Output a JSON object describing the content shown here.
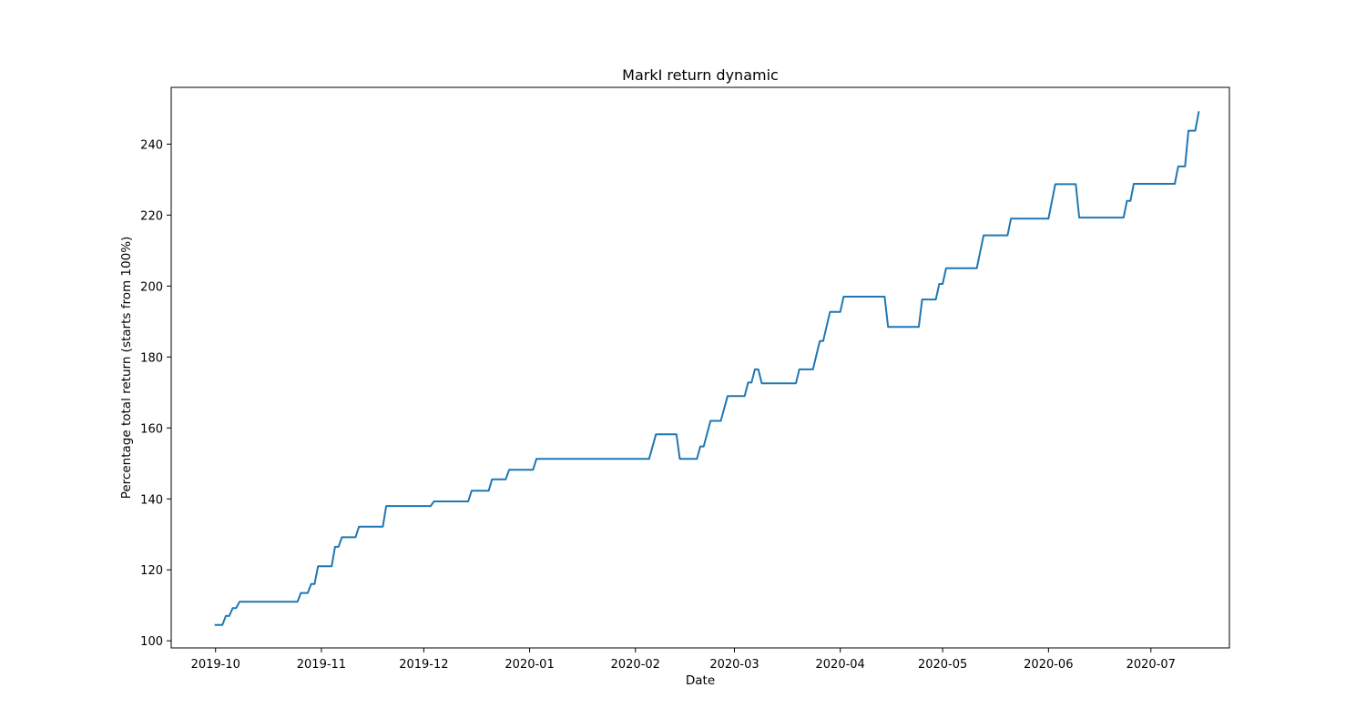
{
  "chart_data": {
    "type": "line",
    "title": "MarkI return dynamic",
    "xlabel": "Date",
    "ylabel": "Percentage total return (starts from 100%)",
    "xlim": [
      "2019-09-18",
      "2020-07-24"
    ],
    "ylim": [
      98,
      256
    ],
    "xticks": [
      "2019-10-01",
      "2019-11-01",
      "2019-12-01",
      "2020-01-01",
      "2020-02-01",
      "2020-03-01",
      "2020-04-01",
      "2020-05-01",
      "2020-06-01",
      "2020-07-01"
    ],
    "xtick_labels": [
      "2019-10",
      "2019-11",
      "2019-12",
      "2020-01",
      "2020-02",
      "2020-03",
      "2020-04",
      "2020-05",
      "2020-06",
      "2020-07"
    ],
    "yticks": [
      100,
      120,
      140,
      160,
      180,
      200,
      220,
      240
    ],
    "ytick_labels": [
      "100",
      "120",
      "140",
      "160",
      "180",
      "200",
      "220",
      "240"
    ],
    "grid": false,
    "series": [
      {
        "color": "#1f77b4",
        "x": [
          "2019-10-01",
          "2019-10-03",
          "2019-10-04",
          "2019-10-05",
          "2019-10-06",
          "2019-10-07",
          "2019-10-08",
          "2019-10-09",
          "2019-10-10",
          "2019-10-25",
          "2019-10-26",
          "2019-10-28",
          "2019-10-29",
          "2019-10-30",
          "2019-10-31",
          "2019-11-01",
          "2019-11-04",
          "2019-11-05",
          "2019-11-06",
          "2019-11-07",
          "2019-11-11",
          "2019-11-12",
          "2019-11-19",
          "2019-11-20",
          "2019-12-03",
          "2019-12-04",
          "2019-12-14",
          "2019-12-15",
          "2019-12-20",
          "2019-12-21",
          "2019-12-25",
          "2019-12-26",
          "2020-01-02",
          "2020-01-03",
          "2020-02-05",
          "2020-02-07",
          "2020-02-13",
          "2020-02-14",
          "2020-02-19",
          "2020-02-20",
          "2020-02-21",
          "2020-02-23",
          "2020-02-26",
          "2020-02-28",
          "2020-03-04",
          "2020-03-05",
          "2020-03-06",
          "2020-03-07",
          "2020-03-08",
          "2020-03-09",
          "2020-03-19",
          "2020-03-20",
          "2020-03-24",
          "2020-03-26",
          "2020-03-27",
          "2020-03-29",
          "2020-04-01",
          "2020-04-02",
          "2020-04-14",
          "2020-04-15",
          "2020-04-24",
          "2020-04-25",
          "2020-04-29",
          "2020-04-30",
          "2020-05-01",
          "2020-05-02",
          "2020-05-11",
          "2020-05-13",
          "2020-05-20",
          "2020-05-21",
          "2020-06-01",
          "2020-06-03",
          "2020-06-09",
          "2020-06-10",
          "2020-06-23",
          "2020-06-24",
          "2020-06-25",
          "2020-06-26",
          "2020-07-08",
          "2020-07-09",
          "2020-07-11",
          "2020-07-12",
          "2020-07-14",
          "2020-07-15"
        ],
        "y": [
          104.5,
          104.5,
          107,
          107,
          109.2,
          109.2,
          111,
          111,
          111,
          111,
          113.5,
          113.5,
          116,
          116,
          121,
          121,
          121,
          126.5,
          126.5,
          129.2,
          129.2,
          132.2,
          132.2,
          138,
          138,
          139.3,
          139.3,
          142.3,
          142.3,
          145.5,
          145.5,
          148.2,
          148.2,
          151.3,
          151.3,
          158.2,
          158.2,
          151.3,
          151.3,
          154.8,
          154.8,
          162,
          162,
          169,
          169,
          172.8,
          172.8,
          176.5,
          176.5,
          172.6,
          172.6,
          176.5,
          176.5,
          184.5,
          184.5,
          192.7,
          192.7,
          197,
          197,
          188.5,
          188.5,
          196.2,
          196.2,
          200.6,
          200.6,
          205,
          205,
          214.3,
          214.3,
          219,
          219,
          228.7,
          228.7,
          219.3,
          219.3,
          224,
          224,
          228.8,
          228.8,
          233.7,
          233.7,
          243.8,
          243.8,
          249
        ]
      }
    ]
  }
}
